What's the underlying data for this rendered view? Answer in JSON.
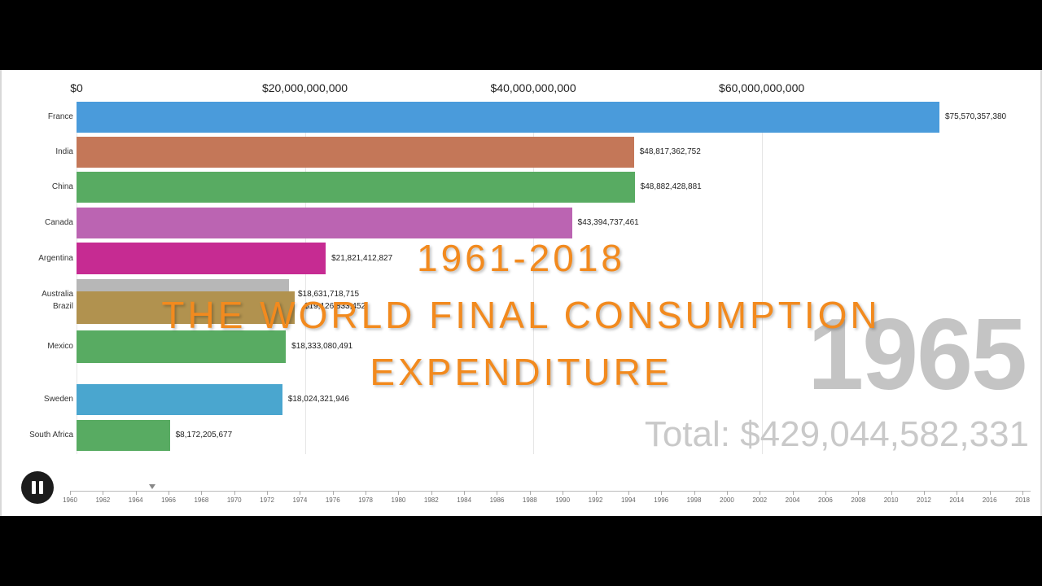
{
  "overlay": {
    "line1": "1961-2018",
    "line2": "THE WORLD FINAL CONSUMPTION",
    "line3": "EXPENDITURE"
  },
  "year": "1965",
  "total_text": "Total: $429,044,582,331",
  "timeline_years": [
    "1960",
    "1962",
    "1964",
    "1966",
    "1968",
    "1970",
    "1972",
    "1974",
    "1976",
    "1978",
    "1980",
    "1982",
    "1984",
    "1986",
    "1988",
    "1990",
    "1992",
    "1994",
    "1996",
    "1998",
    "2000",
    "2002",
    "2004",
    "2006",
    "2008",
    "2010",
    "2012",
    "2014",
    "2016",
    "2018"
  ],
  "current_year": 1965,
  "chart_data": {
    "type": "bar",
    "orientation": "horizontal",
    "xlim": [
      0,
      75570357380
    ],
    "x_ticks": [
      0,
      20000000000,
      40000000000,
      60000000000
    ],
    "x_tick_labels": [
      "$0",
      "$20,000,000,000",
      "$40,000,000,000",
      "$60,000,000,000"
    ],
    "grid": true,
    "bars": [
      {
        "label": "France",
        "value": 75570357380,
        "value_label": "$75,570,357,380",
        "color": "#4a9bdb"
      },
      {
        "label": "India",
        "value": 48817362752,
        "value_label": "$48,817,362,752",
        "color": "#c47758"
      },
      {
        "label": "China",
        "value": 48882428881,
        "value_label": "$48,882,428,881",
        "color": "#58ab62"
      },
      {
        "label": "Canada",
        "value": 43394737461,
        "value_label": "$43,394,737,461",
        "color": "#bb64b2"
      },
      {
        "label": "Argentina",
        "value": 21821412827,
        "value_label": "$21,821,412,827",
        "color": "#c62b92"
      },
      {
        "label": "Australia",
        "value": 18631718715,
        "value_label": "$18,631,718,715",
        "color": "#aaaaaa"
      },
      {
        "label": "Brazil",
        "value": 19126833452,
        "value_label": "$19,126,833,452",
        "color": "#a8863c"
      },
      {
        "label": "Mexico",
        "value": 18333080491,
        "value_label": "$18,333,080,491",
        "color": "#58ab62"
      },
      {
        "label": "Sweden",
        "value": 18024321946,
        "value_label": "$18,024,321,946",
        "color": "#4aa6cf"
      },
      {
        "label": "South Africa",
        "value": 8172205677,
        "value_label": "$8,172,205,677",
        "color": "#58ab62"
      }
    ]
  }
}
